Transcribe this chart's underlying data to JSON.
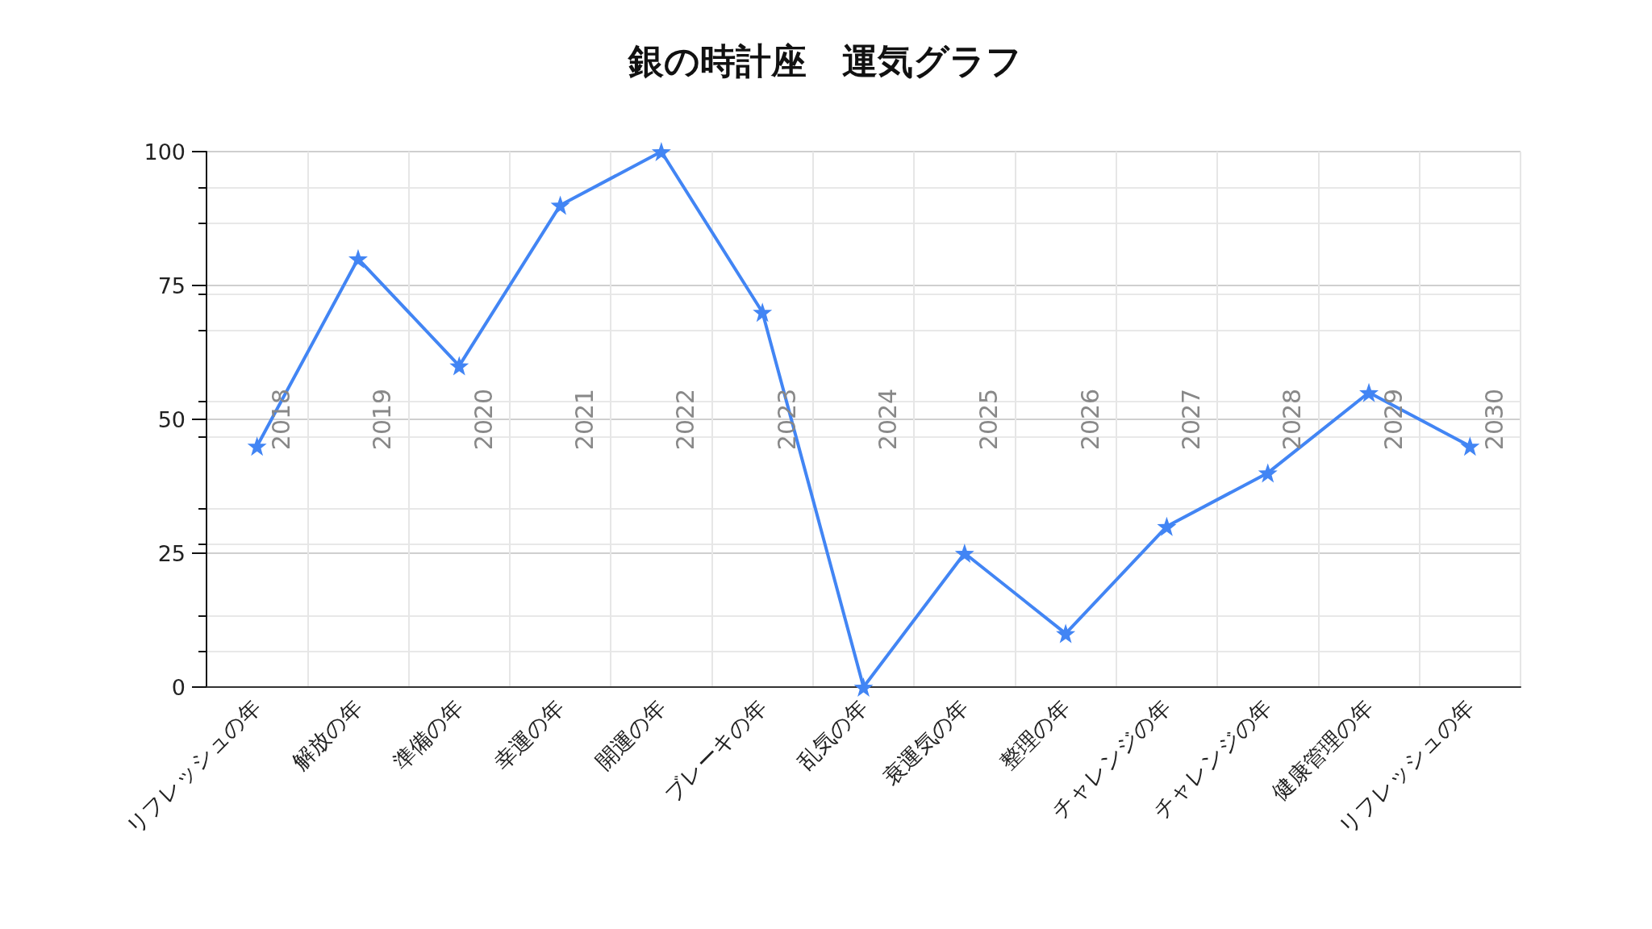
{
  "chart_data": {
    "type": "line",
    "title": "銀の時計座　運気グラフ",
    "categories": [
      "リフレッシュの年",
      "解放の年",
      "準備の年",
      "幸運の年",
      "開運の年",
      "ブレーキの年",
      "乱気の年",
      "衰運気の年",
      "整理の年",
      "チャレンジの年",
      "チャレンジの年",
      "健康管理の年",
      "リフレッシュの年"
    ],
    "values": [
      45,
      80,
      60,
      90,
      100,
      70,
      0,
      25,
      10,
      30,
      40,
      55,
      45
    ],
    "color": "#4285f4",
    "marker": "star",
    "ylim": [
      0,
      100
    ],
    "yticks": [
      0,
      25,
      50,
      75,
      100
    ],
    "grid": true,
    "annotations": [
      "2018",
      "2019",
      "2020",
      "2021",
      "2022",
      "2023",
      "2024",
      "2025",
      "2026",
      "2027",
      "2028",
      "2029",
      "2030"
    ]
  }
}
